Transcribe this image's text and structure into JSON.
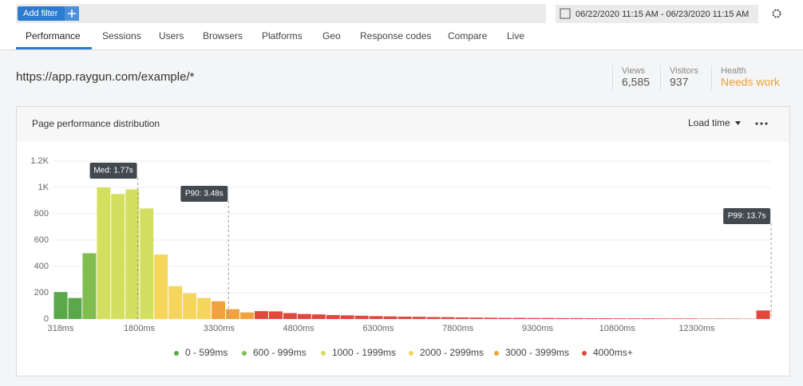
{
  "toolbar": {
    "add_filter": "Add filter",
    "date_range": "06/22/2020 11:15 AM - 06/23/2020 11:15 AM"
  },
  "tabs": [
    "Performance",
    "Sessions",
    "Users",
    "Browsers",
    "Platforms",
    "Geo",
    "Response codes",
    "Compare",
    "Live"
  ],
  "page_url": "https://app.raygun.com/example/*",
  "stats": [
    {
      "label": "Views",
      "value": "6,585"
    },
    {
      "label": "Visitors",
      "value": "937"
    },
    {
      "label": "Health",
      "value": "Needs work"
    }
  ],
  "chart_data": {
    "type": "histogram",
    "title": "Page performance distribution",
    "metric_selector": "Load time",
    "bins": [
      183,
      453,
      723,
      993,
      1263,
      1533,
      1803,
      2073,
      2343,
      2613,
      2883,
      3153,
      3423,
      3693,
      3963,
      4233,
      4503,
      4773,
      5043,
      5313,
      5583,
      5853,
      6123,
      6393,
      6663,
      6933,
      7203,
      7473,
      7743,
      8013,
      8283,
      8553,
      8823,
      9093,
      9363,
      9633,
      9903,
      10173,
      10443,
      10713,
      10983,
      11253,
      11523,
      11793,
      12063,
      12333,
      12603,
      12873,
      13143,
      13413,
      13683
    ],
    "counts": [
      205,
      160,
      500,
      1000,
      950,
      985,
      840,
      490,
      250,
      195,
      160,
      135,
      75,
      50,
      60,
      58,
      45,
      38,
      35,
      30,
      28,
      25,
      22,
      20,
      18,
      17,
      15,
      14,
      12,
      11,
      10,
      9,
      9,
      8,
      8,
      7,
      7,
      6,
      6,
      5,
      5,
      5,
      4,
      4,
      4,
      3,
      3,
      3,
      2,
      65
    ],
    "colors": [
      "#5ba84b",
      "#5ba84b",
      "#80bc50",
      "#d3df5f",
      "#d3df5f",
      "#d3df5f",
      "#d3df5f",
      "#f6d55c",
      "#f6d55c",
      "#f6d55c",
      "#f6d55c",
      "#f0a33c",
      "#f0a33c",
      "#f0a33c",
      "#e0473d",
      "#e0473d",
      "#e0473d",
      "#e0473d",
      "#e0473d",
      "#e0473d",
      "#e0473d",
      "#e0473d",
      "#e0473d",
      "#e0473d",
      "#e0473d",
      "#e0473d",
      "#e0473d",
      "#e0473d",
      "#e0473d",
      "#e0473d",
      "#e0473d",
      "#e0473d",
      "#e0473d",
      "#e0473d",
      "#e0473d",
      "#e0473d",
      "#e0473d",
      "#e0473d",
      "#e0473d",
      "#e0473d",
      "#e0473d",
      "#e0473d",
      "#e0473d",
      "#e0473d",
      "#e0473d",
      "#e0473d",
      "#e0473d",
      "#e0473d",
      "#e0473d",
      "#e0473d"
    ],
    "xlim": [
      183,
      13683
    ],
    "xticks": [
      {
        "value": 318,
        "label": "318ms"
      },
      {
        "value": 1800,
        "label": "1800ms"
      },
      {
        "value": 3300,
        "label": "3300ms"
      },
      {
        "value": 4800,
        "label": "4800ms"
      },
      {
        "value": 6300,
        "label": "6300ms"
      },
      {
        "value": 7800,
        "label": "7800ms"
      },
      {
        "value": 9300,
        "label": "9300ms"
      },
      {
        "value": 10800,
        "label": "10800ms"
      },
      {
        "value": 12300,
        "label": "12300ms"
      }
    ],
    "ylim": [
      0,
      1200
    ],
    "yticks": [
      0,
      200,
      400,
      600,
      800,
      {
        "value": 1000,
        "label": "1K"
      },
      {
        "value": 1200,
        "label": "1.2K"
      }
    ],
    "grid": true,
    "markers": [
      {
        "label": "Med: 1.77s",
        "value": 1770
      },
      {
        "label": "P90: 3.48s",
        "value": 3480
      },
      {
        "label": "P99: 13.7s",
        "value": 13700
      }
    ],
    "legend": [
      {
        "name": "0 - 599ms",
        "color": "#5ba84b"
      },
      {
        "name": "600 - 999ms",
        "color": "#80bc50"
      },
      {
        "name": "1000 - 1999ms",
        "color": "#d3df5f"
      },
      {
        "name": "2000 - 2999ms",
        "color": "#f6d55c"
      },
      {
        "name": "3000 - 3999ms",
        "color": "#f0a33c"
      },
      {
        "name": "4000ms+",
        "color": "#e0473d"
      }
    ]
  }
}
